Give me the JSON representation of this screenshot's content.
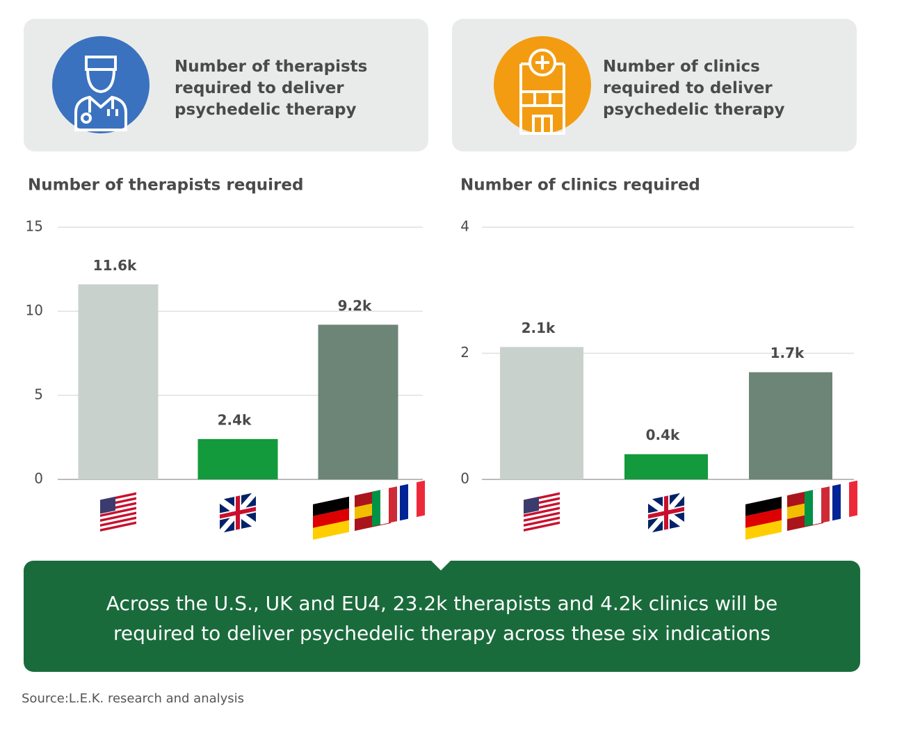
{
  "headers": [
    {
      "title": "Number of therapists required to deliver psychedelic therapy"
    },
    {
      "title": "Number of clinics required to deliver psychedelic therapy"
    }
  ],
  "chart_data": [
    {
      "type": "bar",
      "title": "Number of therapists required",
      "categories": [
        null,
        null,
        null
      ],
      "values": [
        11.6,
        2.4,
        9.2
      ],
      "value_labels": [
        "11.6k",
        "2.4k",
        "9.2k"
      ],
      "colors": [
        "#c9d1cd",
        "#139a3c",
        "#6d8577"
      ],
      "ylim": [
        0,
        15
      ],
      "yticks": [
        0,
        5,
        10,
        15
      ],
      "grid": true
    },
    {
      "type": "bar",
      "title": "Number of clinics required",
      "categories": [
        null,
        null,
        null
      ],
      "values": [
        2.1,
        0.4,
        1.7
      ],
      "value_labels": [
        "2.1k",
        "0.4k",
        "1.7k"
      ],
      "colors": [
        "#c9d1cd",
        "#139a3c",
        "#6d8577"
      ],
      "ylim": [
        0,
        4
      ],
      "yticks": [
        0,
        2,
        4
      ],
      "grid": true
    }
  ],
  "summary": "Across the U.S., UK and EU4, 23.2k therapists and 4.2k clinics will be required to deliver psychedelic therapy across these six indications",
  "source": "Source:L.E.K. research and analysis"
}
